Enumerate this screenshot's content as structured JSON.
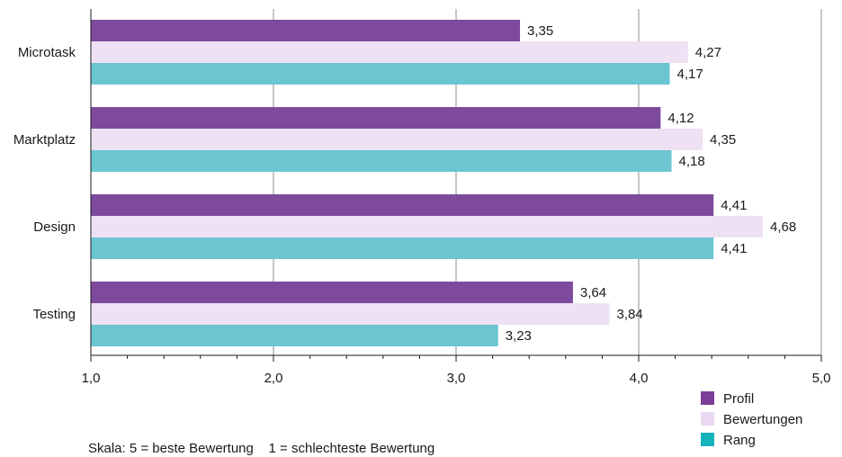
{
  "chart_data": {
    "type": "bar",
    "orientation": "horizontal",
    "categories": [
      "Microtask",
      "Marktplatz",
      "Design",
      "Testing"
    ],
    "series": [
      {
        "name": "Profil",
        "color": "#7e4a9d",
        "values": [
          3.35,
          4.12,
          4.41,
          3.64
        ],
        "labels": [
          "3,35",
          "4,12",
          "4,41",
          "3,64"
        ]
      },
      {
        "name": "Bewertungen",
        "color": "#ede1f3",
        "values": [
          4.27,
          4.35,
          4.68,
          3.84
        ],
        "labels": [
          "4,27",
          "4,35",
          "4,68",
          "3,84"
        ]
      },
      {
        "name": "Rang",
        "color": "#6bc6d2",
        "values": [
          4.17,
          4.18,
          4.41,
          3.23
        ],
        "labels": [
          "4,17",
          "4,18",
          "4,41",
          "3,23"
        ]
      }
    ],
    "xlim": [
      1.0,
      5.0
    ],
    "x_ticks": [
      1.0,
      2.0,
      3.0,
      4.0,
      5.0
    ],
    "x_tick_labels": [
      "1,0",
      "2,0",
      "3,0",
      "4,0",
      "5,0"
    ],
    "grid": "vertical",
    "legend_position": "bottom-right",
    "legend_colors": [
      "#7b3f98",
      "#ead9f1",
      "#16b3bd"
    ],
    "note": "Skala: 5 = beste Bewertung    1 = schlechteste Bewertung"
  }
}
